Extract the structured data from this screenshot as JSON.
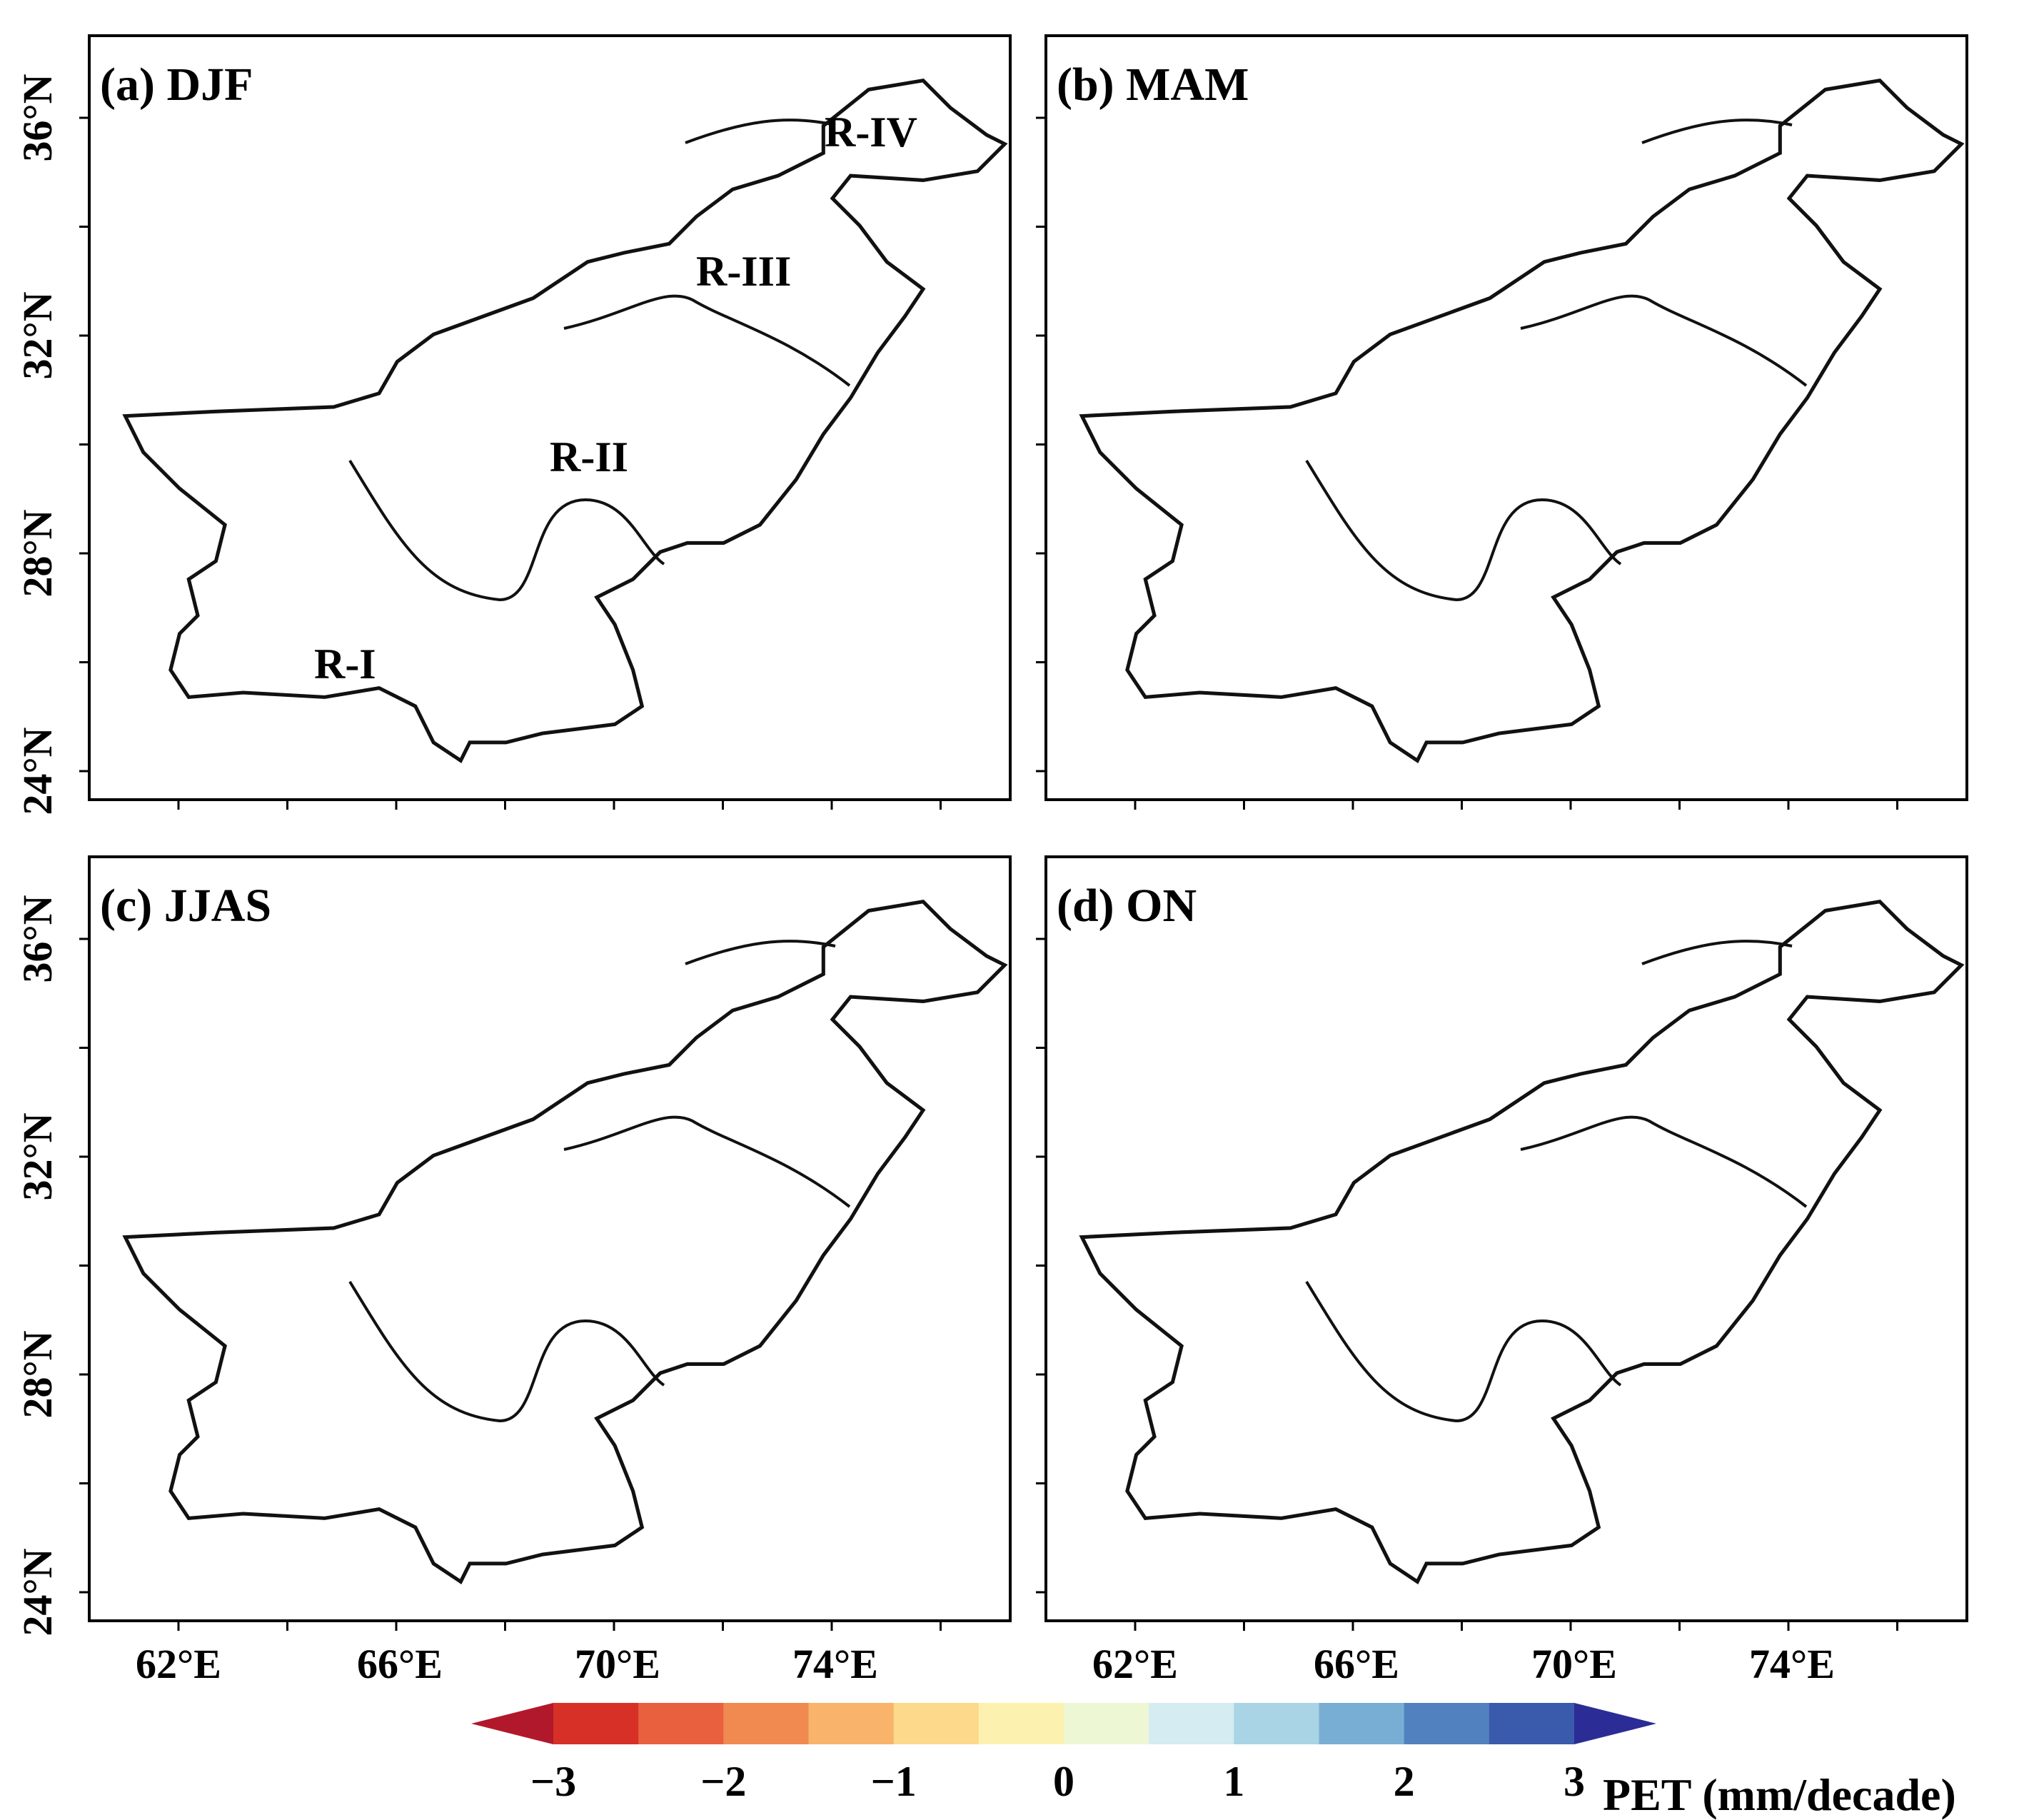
{
  "panels": [
    {
      "title": "(a) DJF",
      "season": "DJF",
      "region_labels": [
        "R-I",
        "R-II",
        "R-III",
        "R-IV"
      ]
    },
    {
      "title": "(b) MAM",
      "season": "MAM",
      "region_labels": []
    },
    {
      "title": "(c) JJAS",
      "season": "JJAS",
      "region_labels": []
    },
    {
      "title": "(d) ON",
      "season": "ON",
      "region_labels": []
    }
  ],
  "lat_ticks": [
    "24°N",
    "28°N",
    "32°N",
    "36°N"
  ],
  "lon_ticks": [
    "62°E",
    "66°E",
    "70°E",
    "74°E"
  ],
  "colorbar": {
    "label": "PET (mm/decade)",
    "tick_labels": [
      "−3",
      "−2",
      "−1",
      "0",
      "1",
      "2",
      "3"
    ],
    "colors": [
      "#b2182b",
      "#d73027",
      "#e8603e",
      "#f08a50",
      "#f9b36b",
      "#fcd98b",
      "#fdf1b0",
      "#eef7d4",
      "#d4ecf2",
      "#a9d4e6",
      "#78aed4",
      "#5281c0",
      "#3a5bab",
      "#2c2c96"
    ]
  },
  "colors": {
    "djf_land": "#e2e4f0",
    "djf_north": "#f7e4a6",
    "mam_land": "#5b82c4",
    "mam_north": "#f3d496",
    "jjas_land": "#8fb1d9",
    "jjas_hot": "#e2452e",
    "on_land": "#dfe2f0",
    "on_warm": "#f6e2b8"
  }
}
